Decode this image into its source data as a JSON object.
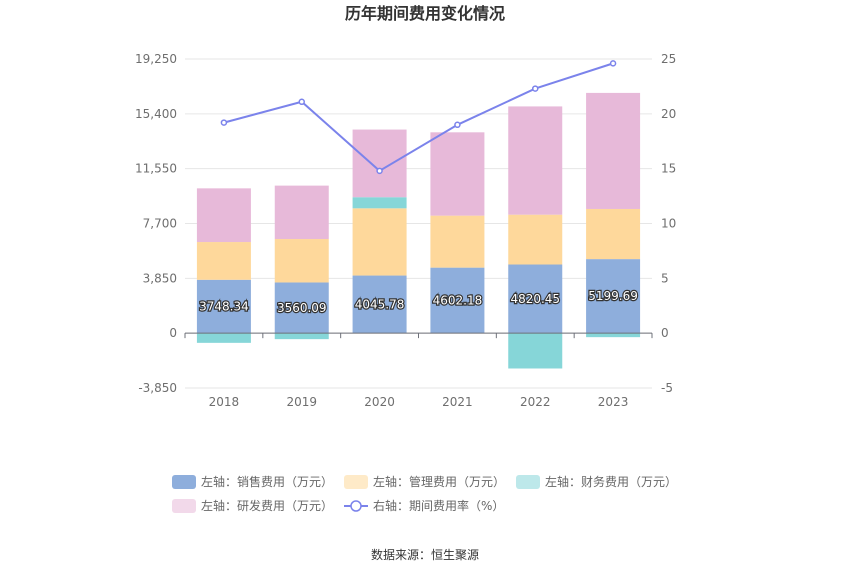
{
  "chart_data": {
    "type": "bar",
    "title": "历年期间费用变化情况",
    "categories": [
      "2018",
      "2019",
      "2020",
      "2021",
      "2022",
      "2023"
    ],
    "stacked": true,
    "series": [
      {
        "name": "左轴：销售费用（万元）",
        "axis": "left",
        "color": "#8eaedc",
        "values": [
          3748.34,
          3560.09,
          4045.78,
          4602.18,
          4820.45,
          5199.69
        ],
        "show_labels": true
      },
      {
        "name": "左轴：管理费用（万元）",
        "axis": "left",
        "color": "#fed89b",
        "values": [
          2650,
          3050,
          4720,
          3650,
          3500,
          3520
        ]
      },
      {
        "name": "左轴：财务费用（万元）",
        "axis": "left",
        "color": "#86d6d8",
        "values": [
          -680,
          -420,
          780,
          0,
          -2480,
          -280
        ]
      },
      {
        "name": "左轴：研发费用（万元）",
        "axis": "left",
        "color": "#e7b9d9",
        "values": [
          3770,
          3750,
          4750,
          5850,
          7600,
          8150
        ]
      },
      {
        "name": "右轴：期间费用率（%）",
        "axis": "right",
        "type": "line",
        "color": "#7b83eb",
        "values": [
          19.2,
          21.1,
          14.8,
          19.0,
          22.3,
          24.6
        ]
      }
    ],
    "left_axis": {
      "ticks": [
        "-3,850",
        "0",
        "3,850",
        "7,700",
        "11,550",
        "15,400",
        "19,250"
      ],
      "min": -3850,
      "max": 19250
    },
    "right_axis": {
      "ticks": [
        "-5",
        "0",
        "5",
        "10",
        "15",
        "20",
        "25"
      ],
      "min": -5,
      "max": 25
    },
    "grid": true,
    "legend_position": "bottom"
  },
  "source": "数据来源：恒生聚源"
}
